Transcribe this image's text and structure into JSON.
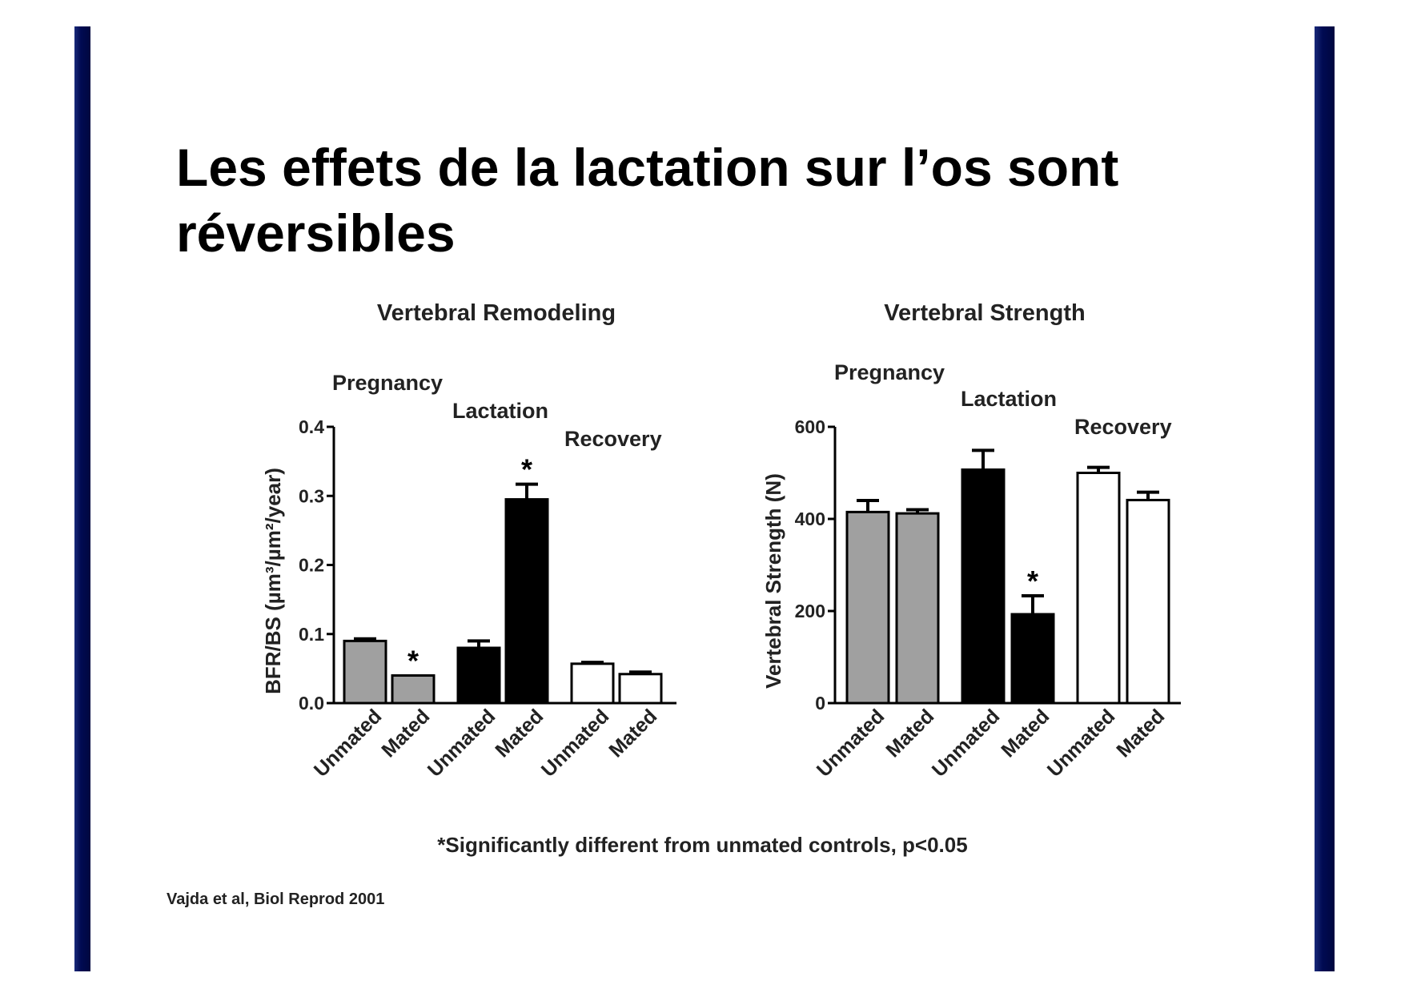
{
  "slide": {
    "title": "Les effets de la lactation sur l’os sont réversibles",
    "footnote": "*Significantly different from unmated controls, p<0.05",
    "citation": "Vajda et al, Biol Reprod 2001",
    "colors": {
      "sidebar": "#000a52",
      "pregnancy": "#a0a0a0",
      "lactation": "#000000",
      "recovery": "#ffffff"
    }
  },
  "chart_data": [
    {
      "type": "bar",
      "title": "Vertebral Remodeling",
      "ylabel": "BFR/BS (µm³/µm²/year)",
      "xlabel": "",
      "ylim": [
        0,
        0.4
      ],
      "yticks": [
        "0.0",
        "0.1",
        "0.2",
        "0.3",
        "0.4"
      ],
      "yticks_values": [
        0,
        0.1,
        0.2,
        0.3,
        0.4
      ],
      "groups": [
        "Pregnancy",
        "Lactation",
        "Recovery"
      ],
      "categories": [
        "Unmated",
        "Mated",
        "Unmated",
        "Mated",
        "Unmated",
        "Mated"
      ],
      "values": [
        0.09,
        0.04,
        0.08,
        0.295,
        0.057,
        0.042
      ],
      "errors": [
        0.003,
        0.0,
        0.01,
        0.022,
        0.002,
        0.003
      ],
      "significant": [
        "",
        "*",
        "",
        "*",
        "",
        ""
      ],
      "fills": [
        "#a0a0a0",
        "#a0a0a0",
        "#000000",
        "#000000",
        "#ffffff",
        "#ffffff"
      ]
    },
    {
      "type": "bar",
      "title": "Vertebral Strength",
      "ylabel": "Vertebral Strength (N)",
      "xlabel": "",
      "ylim": [
        0,
        600
      ],
      "yticks": [
        "0",
        "200",
        "400",
        "600"
      ],
      "yticks_values": [
        0,
        200,
        400,
        600
      ],
      "groups": [
        "Pregnancy",
        "Lactation",
        "Recovery"
      ],
      "categories": [
        "Unmated",
        "Mated",
        "Unmated",
        "Mated",
        "Unmated",
        "Mated"
      ],
      "values": [
        415,
        412,
        507,
        193,
        500,
        441
      ],
      "errors": [
        25,
        8,
        42,
        40,
        12,
        17
      ],
      "significant": [
        "",
        "",
        "",
        "*",
        "",
        ""
      ],
      "fills": [
        "#a0a0a0",
        "#a0a0a0",
        "#000000",
        "#000000",
        "#ffffff",
        "#ffffff"
      ]
    }
  ]
}
